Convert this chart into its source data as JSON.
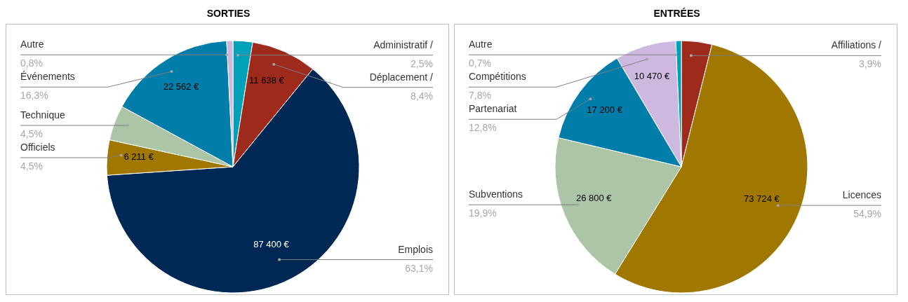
{
  "chart_data": [
    {
      "type": "pie",
      "title": "SORTIES",
      "categories": [
        "Administratif /",
        "Déplacement /",
        "Emplois",
        "Officiels",
        "Technique",
        "Événements",
        "Autre"
      ],
      "values": [
        2.5,
        8.4,
        63.1,
        4.5,
        4.5,
        16.3,
        0.8
      ],
      "value_labels": [
        "2,5%",
        "8,4%",
        "63,1%",
        "4,5%",
        "4,5%",
        "16,3%",
        "0,8%"
      ],
      "colors": [
        "#00a0b8",
        "#9e2a1c",
        "#002855",
        "#a07800",
        "#adc5a7",
        "#007da9",
        "#cdb9e0"
      ],
      "annotations": [
        {
          "text": "11 638 €",
          "x": "Déplacement /"
        },
        {
          "text": "87 400 €",
          "x": "Emplois"
        },
        {
          "text": "6 211 €",
          "x": "Officiels"
        },
        {
          "text": "22 562 €",
          "x": "Événements"
        }
      ],
      "legend": false
    },
    {
      "type": "pie",
      "title": "ENTRÉES",
      "categories": [
        "Affiliations /",
        "Licences",
        "Subventions",
        "Partenariat",
        "Compétitions",
        "Autre"
      ],
      "values": [
        3.9,
        54.9,
        19.9,
        12.8,
        7.8,
        0.7
      ],
      "value_labels": [
        "3,9%",
        "54,9%",
        "19,9%",
        "12,8%",
        "7,8%",
        "0,7%"
      ],
      "colors": [
        "#9e2a1c",
        "#a07800",
        "#adc5a7",
        "#007da9",
        "#cdb9e0",
        "#00a0b8"
      ],
      "annotations": [
        {
          "text": "73 724 €",
          "x": "Licences"
        },
        {
          "text": "26 800 €",
          "x": "Subventions"
        },
        {
          "text": "17 200 €",
          "x": "Partenariat"
        },
        {
          "text": "10 470 €",
          "x": "Compétitions"
        }
      ],
      "legend": false
    }
  ]
}
